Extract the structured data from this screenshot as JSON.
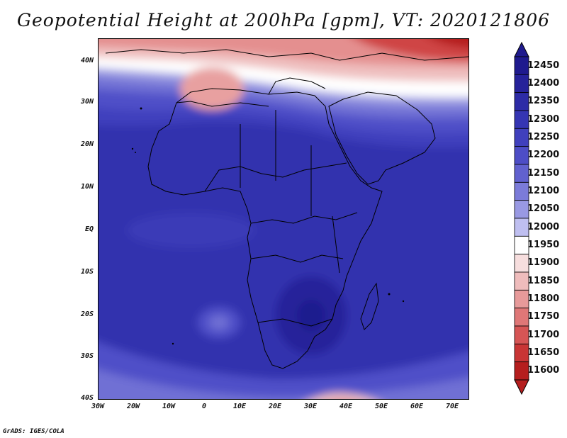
{
  "title": "Geopotential Height at 200hPa [gpm], VT: 2020121806",
  "footer": "GrADS: IGES/COLA",
  "lat_labels": [
    "40N",
    "30N",
    "20N",
    "10N",
    "EQ",
    "10S",
    "20S",
    "30S",
    "40S"
  ],
  "lon_labels": [
    "30W",
    "20W",
    "10W",
    "0",
    "10E",
    "20E",
    "30E",
    "40E",
    "50E",
    "60E",
    "70E"
  ],
  "colorbar_levels": [
    "12450",
    "12400",
    "12350",
    "12300",
    "12250",
    "12200",
    "12150",
    "12100",
    "12050",
    "12000",
    "11950",
    "11900",
    "11850",
    "11800",
    "11750",
    "11700",
    "11650",
    "11600"
  ],
  "colorbar_colors": [
    "#1f1a8e",
    "#26229a",
    "#2d2ba6",
    "#3535b3",
    "#4040bd",
    "#4d4dc6",
    "#6161cf",
    "#7b7bd9",
    "#9999e3",
    "#bfbff0",
    "#ffffff",
    "#f7dede",
    "#efbcbc",
    "#e79a9a",
    "#df7777",
    "#d65555",
    "#c93535",
    "#b51e1e"
  ],
  "colors": {
    "accent_high": "#2d2ba6",
    "accent_low": "#c93535"
  }
}
